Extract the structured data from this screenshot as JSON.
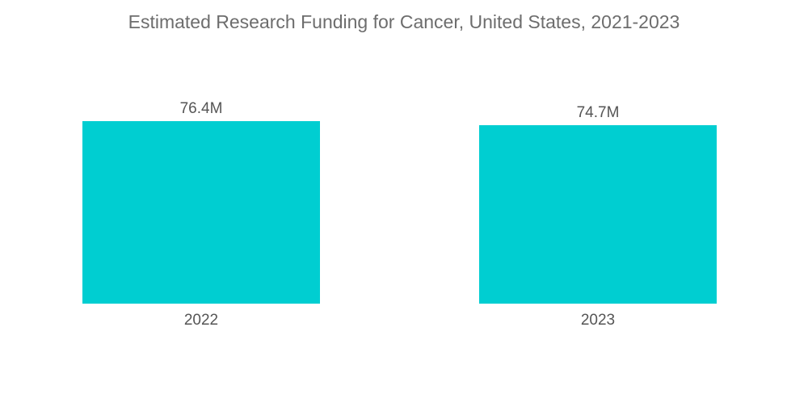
{
  "chart_data": {
    "type": "bar",
    "title": "Estimated Research Funding for Cancer, United States, 2021-2023",
    "categories": [
      "2022",
      "2023"
    ],
    "values": [
      76.4,
      74.7
    ],
    "data_labels": [
      "76.4M",
      "74.7M"
    ],
    "unit": "M",
    "xlabel": "",
    "ylabel": "",
    "ylim": [
      0,
      76.4
    ],
    "grid": false,
    "legend": "none",
    "bar_color": "#00CED1"
  }
}
